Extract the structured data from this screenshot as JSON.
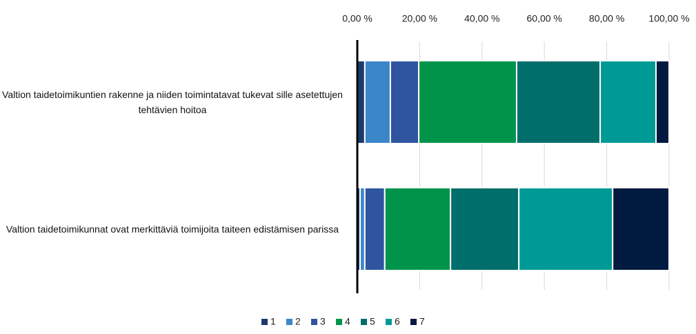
{
  "chart_data": {
    "type": "stacked_barh",
    "categories": [
      "Valtion taidetoimikuntien rakenne ja niiden toimintatavat tukevat sille asetettujen tehtävien hoitoa",
      "Valtion taidetoimikunnat ovat merkittäviä toimijoita taiteen edistämisen parissa"
    ],
    "series": [
      {
        "name": "1",
        "color": "#1b3a6b",
        "values": [
          2.4,
          0.9
        ]
      },
      {
        "name": "2",
        "color": "#3a86c8",
        "values": [
          8.2,
          1.5
        ]
      },
      {
        "name": "3",
        "color": "#2f55a0",
        "values": [
          9.1,
          6.4
        ]
      },
      {
        "name": "4",
        "color": "#00944a",
        "values": [
          31.4,
          21.1
        ]
      },
      {
        "name": "5",
        "color": "#006e6a",
        "values": [
          26.8,
          21.9
        ]
      },
      {
        "name": "6",
        "color": "#009a96",
        "values": [
          17.9,
          30.1
        ]
      },
      {
        "name": "7",
        "color": "#001a40",
        "values": [
          4.2,
          18.1
        ]
      }
    ],
    "xlim": [
      0,
      100
    ],
    "xticks": [
      {
        "value": 0,
        "label": "0,00 %"
      },
      {
        "value": 20,
        "label": "20,00 %"
      },
      {
        "value": 40,
        "label": "40,00 %"
      },
      {
        "value": 60,
        "label": "60,00 %"
      },
      {
        "value": 80,
        "label": "80,00 %"
      },
      {
        "value": 100,
        "label": "100,00 %"
      }
    ],
    "grid": true,
    "legend": "bottom"
  }
}
